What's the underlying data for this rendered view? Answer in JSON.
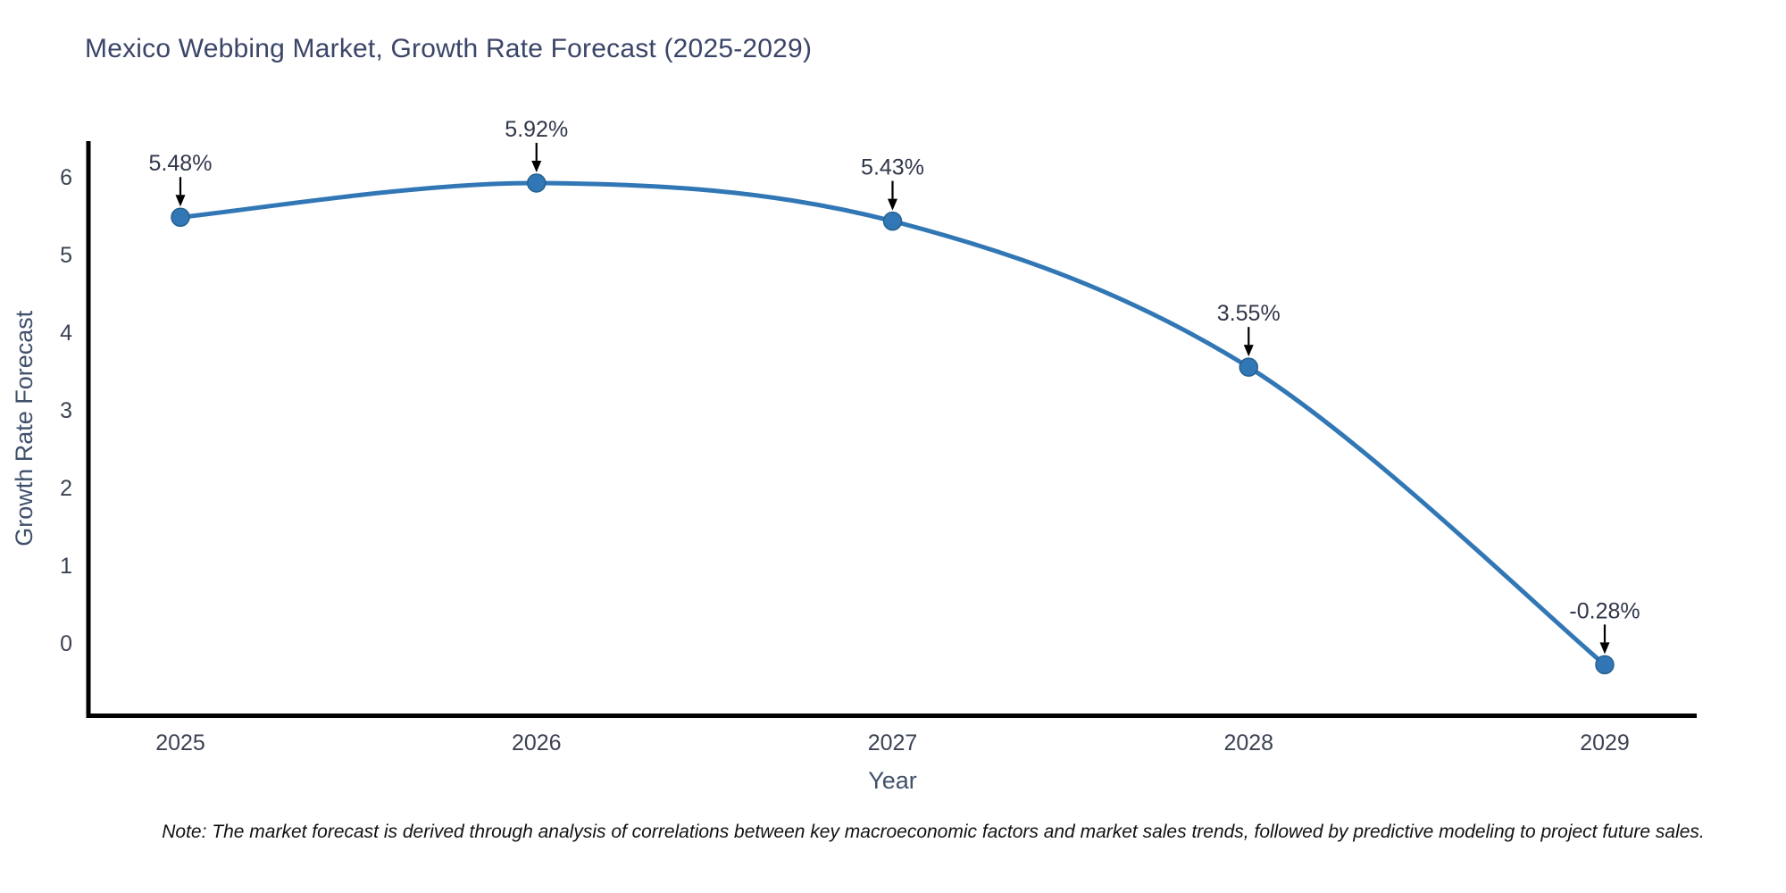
{
  "page": {
    "note": "Note: The market forecast is derived through analysis of correlations between key macroeconomic factors and market sales trends, followed by predictive modeling to project future sales."
  },
  "chart_data": {
    "type": "line",
    "title": "Mexico Webbing Market, Growth Rate Forecast (2025-2029)",
    "xlabel": "Year",
    "ylabel": "Growth Rate Forecast",
    "categories": [
      "2025",
      "2026",
      "2027",
      "2028",
      "2029"
    ],
    "series": [
      {
        "name": "Growth Rate Forecast",
        "values": [
          5.48,
          5.92,
          5.43,
          3.55,
          -0.28
        ]
      }
    ],
    "point_labels": [
      "5.48%",
      "5.92%",
      "5.43%",
      "3.55%",
      "-0.28%"
    ],
    "y_ticks": [
      0,
      1,
      2,
      3,
      4,
      5,
      6
    ],
    "ylim": [
      -0.95,
      6.45
    ],
    "grid": false,
    "legend_position": "none",
    "line_shape": "spline",
    "annotation_arrows": true,
    "colors": {
      "line": "#3277b5",
      "marker_fill": "#3277b5",
      "marker_edge": "#24628f",
      "axis": "#000000",
      "tick_label": "#3b4252",
      "axis_label": "#41506b",
      "title": "#3b4568",
      "annotation_text": "#30374a",
      "arrow": "#000000",
      "note_text": "#111111",
      "background": "#ffffff"
    }
  }
}
